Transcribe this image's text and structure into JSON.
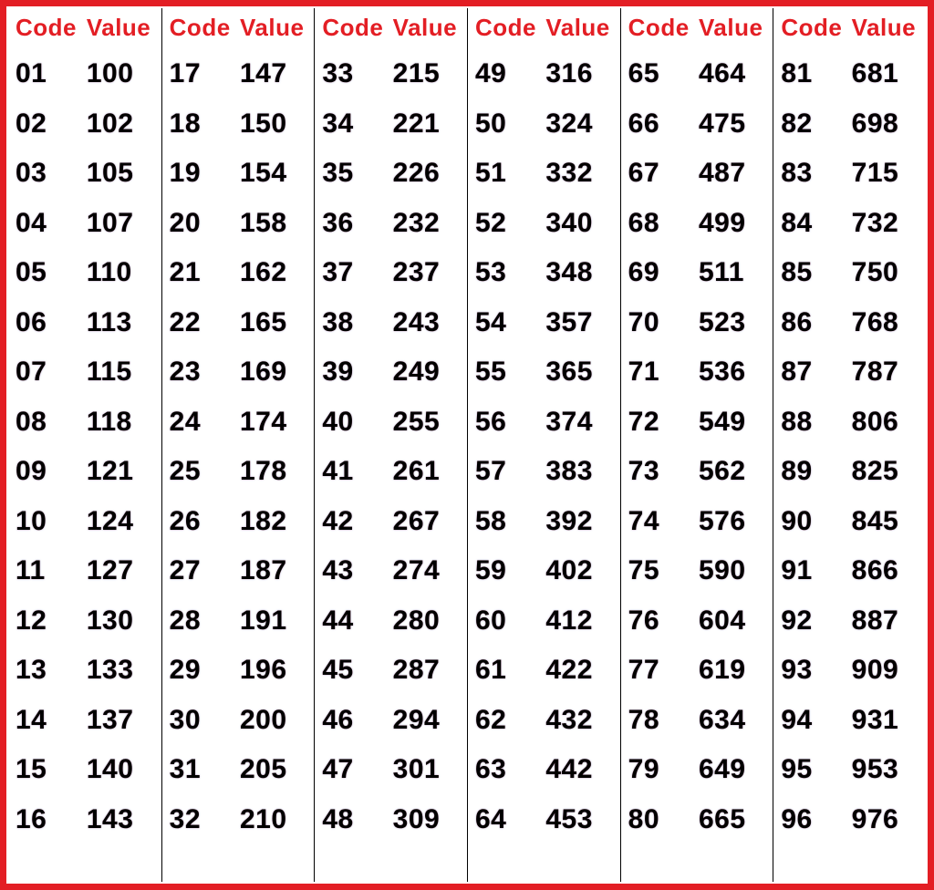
{
  "table": {
    "type": "table",
    "header_labels": {
      "code": "Code",
      "value": "Value"
    },
    "header_color": "#e31e24",
    "header_fontsize": 26,
    "cell_fontsize": 30,
    "cell_color": "#000000",
    "border_color": "#e31e24",
    "border_width": 7,
    "segment_divider_color": "#000000",
    "background_color": "#ffffff",
    "segments": [
      {
        "rows": [
          {
            "code": "01",
            "value": "100"
          },
          {
            "code": "02",
            "value": "102"
          },
          {
            "code": "03",
            "value": "105"
          },
          {
            "code": "04",
            "value": "107"
          },
          {
            "code": "05",
            "value": "110"
          },
          {
            "code": "06",
            "value": "113"
          },
          {
            "code": "07",
            "value": "115"
          },
          {
            "code": "08",
            "value": "118"
          },
          {
            "code": "09",
            "value": "121"
          },
          {
            "code": "10",
            "value": "124"
          },
          {
            "code": "11",
            "value": "127"
          },
          {
            "code": "12",
            "value": "130"
          },
          {
            "code": "13",
            "value": "133"
          },
          {
            "code": "14",
            "value": "137"
          },
          {
            "code": "15",
            "value": "140"
          },
          {
            "code": "16",
            "value": "143"
          }
        ]
      },
      {
        "rows": [
          {
            "code": "17",
            "value": "147"
          },
          {
            "code": "18",
            "value": "150"
          },
          {
            "code": "19",
            "value": "154"
          },
          {
            "code": "20",
            "value": "158"
          },
          {
            "code": "21",
            "value": "162"
          },
          {
            "code": "22",
            "value": "165"
          },
          {
            "code": "23",
            "value": "169"
          },
          {
            "code": "24",
            "value": "174"
          },
          {
            "code": "25",
            "value": "178"
          },
          {
            "code": "26",
            "value": "182"
          },
          {
            "code": "27",
            "value": "187"
          },
          {
            "code": "28",
            "value": "191"
          },
          {
            "code": "29",
            "value": "196"
          },
          {
            "code": "30",
            "value": "200"
          },
          {
            "code": "31",
            "value": "205"
          },
          {
            "code": "32",
            "value": "210"
          }
        ]
      },
      {
        "rows": [
          {
            "code": "33",
            "value": "215"
          },
          {
            "code": "34",
            "value": "221"
          },
          {
            "code": "35",
            "value": "226"
          },
          {
            "code": "36",
            "value": "232"
          },
          {
            "code": "37",
            "value": "237"
          },
          {
            "code": "38",
            "value": "243"
          },
          {
            "code": "39",
            "value": "249"
          },
          {
            "code": "40",
            "value": "255"
          },
          {
            "code": "41",
            "value": "261"
          },
          {
            "code": "42",
            "value": "267"
          },
          {
            "code": "43",
            "value": "274"
          },
          {
            "code": "44",
            "value": "280"
          },
          {
            "code": "45",
            "value": "287"
          },
          {
            "code": "46",
            "value": "294"
          },
          {
            "code": "47",
            "value": "301"
          },
          {
            "code": "48",
            "value": "309"
          }
        ]
      },
      {
        "rows": [
          {
            "code": "49",
            "value": "316"
          },
          {
            "code": "50",
            "value": "324"
          },
          {
            "code": "51",
            "value": "332"
          },
          {
            "code": "52",
            "value": "340"
          },
          {
            "code": "53",
            "value": "348"
          },
          {
            "code": "54",
            "value": "357"
          },
          {
            "code": "55",
            "value": "365"
          },
          {
            "code": "56",
            "value": "374"
          },
          {
            "code": "57",
            "value": "383"
          },
          {
            "code": "58",
            "value": "392"
          },
          {
            "code": "59",
            "value": "402"
          },
          {
            "code": "60",
            "value": "412"
          },
          {
            "code": "61",
            "value": "422"
          },
          {
            "code": "62",
            "value": "432"
          },
          {
            "code": "63",
            "value": "442"
          },
          {
            "code": "64",
            "value": "453"
          }
        ]
      },
      {
        "rows": [
          {
            "code": "65",
            "value": "464"
          },
          {
            "code": "66",
            "value": "475"
          },
          {
            "code": "67",
            "value": "487"
          },
          {
            "code": "68",
            "value": "499"
          },
          {
            "code": "69",
            "value": "511"
          },
          {
            "code": "70",
            "value": "523"
          },
          {
            "code": "71",
            "value": "536"
          },
          {
            "code": "72",
            "value": "549"
          },
          {
            "code": "73",
            "value": "562"
          },
          {
            "code": "74",
            "value": "576"
          },
          {
            "code": "75",
            "value": "590"
          },
          {
            "code": "76",
            "value": "604"
          },
          {
            "code": "77",
            "value": "619"
          },
          {
            "code": "78",
            "value": "634"
          },
          {
            "code": "79",
            "value": "649"
          },
          {
            "code": "80",
            "value": "665"
          }
        ]
      },
      {
        "rows": [
          {
            "code": "81",
            "value": "681"
          },
          {
            "code": "82",
            "value": "698"
          },
          {
            "code": "83",
            "value": "715"
          },
          {
            "code": "84",
            "value": "732"
          },
          {
            "code": "85",
            "value": "750"
          },
          {
            "code": "86",
            "value": "768"
          },
          {
            "code": "87",
            "value": "787"
          },
          {
            "code": "88",
            "value": "806"
          },
          {
            "code": "89",
            "value": "825"
          },
          {
            "code": "90",
            "value": "845"
          },
          {
            "code": "91",
            "value": "866"
          },
          {
            "code": "92",
            "value": "887"
          },
          {
            "code": "93",
            "value": "909"
          },
          {
            "code": "94",
            "value": "931"
          },
          {
            "code": "95",
            "value": "953"
          },
          {
            "code": "96",
            "value": "976"
          }
        ]
      }
    ]
  }
}
